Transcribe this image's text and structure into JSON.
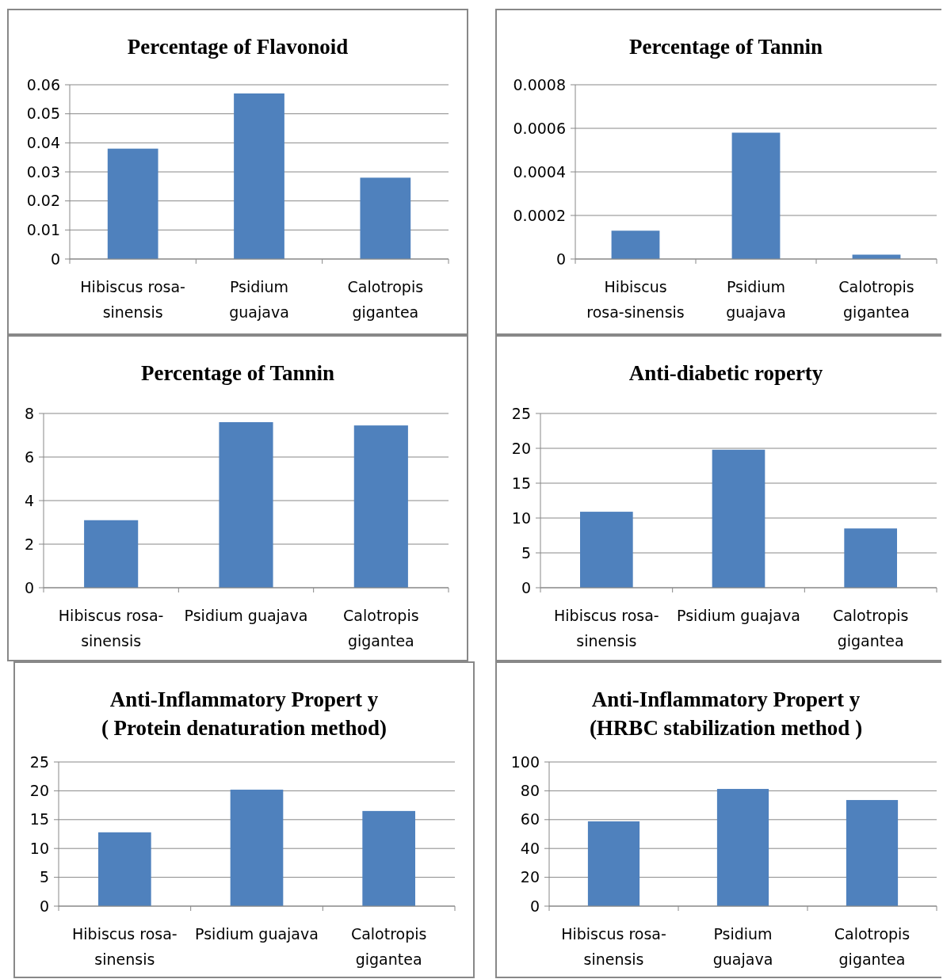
{
  "chart_data": [
    {
      "type": "bar",
      "title": "Percentage of Flavonoid",
      "categories": [
        "Hibiscus rosa-sinensis",
        "Psidium guajava",
        "Calotropis gigantea"
      ],
      "values": [
        0.038,
        0.057,
        0.028
      ],
      "color": "#4f81bd",
      "ylim": [
        0,
        0.06
      ],
      "yticks": [
        0,
        0.01,
        0.02,
        0.03,
        0.04,
        0.05,
        0.06
      ],
      "grid": "y"
    },
    {
      "type": "bar",
      "title": "Percentage of  Tannin",
      "categories": [
        "Hibiscus rosa-sinensis",
        "Psidium guajava",
        "Calotropis gigantea"
      ],
      "values": [
        0.00013,
        0.00058,
        2e-05
      ],
      "color": "#4f81bd",
      "ylim": [
        0,
        0.0008
      ],
      "yticks": [
        0,
        0.0002,
        0.0004,
        0.0006,
        0.0008
      ],
      "grid": "y"
    },
    {
      "type": "bar",
      "title": "Percentage of  Tannin",
      "categories": [
        "Hibiscus rosa-sinensis",
        "Psidium guajava",
        "Calotropis gigantea"
      ],
      "values": [
        3.1,
        7.6,
        7.45
      ],
      "color": "#4f81bd",
      "ylim": [
        0,
        8
      ],
      "yticks": [
        0,
        2,
        4,
        6,
        8
      ],
      "grid": "y"
    },
    {
      "type": "bar",
      "title": "Anti-diabetic roperty",
      "categories": [
        "Hibiscus rosa-sinensis",
        "Psidium guajava",
        "Calotropis gigantea"
      ],
      "values": [
        10.9,
        19.8,
        8.5
      ],
      "color": "#4f81bd",
      "ylim": [
        0,
        25
      ],
      "yticks": [
        0,
        5,
        10,
        15,
        20,
        25
      ],
      "grid": "y"
    },
    {
      "type": "bar",
      "title": "Anti-Inflammatory Propert y\n( Protein denaturation method)",
      "categories": [
        "Hibiscus rosa-sinensis",
        "Psidium guajava",
        "Calotropis gigantea"
      ],
      "values": [
        12.8,
        20.2,
        16.5
      ],
      "color": "#4f81bd",
      "ylim": [
        0,
        25
      ],
      "yticks": [
        0,
        5,
        10,
        15,
        20,
        25
      ],
      "grid": "y"
    },
    {
      "type": "bar",
      "title": "Anti-Inflammatory Propert y\n(HRBC  stabilization method )",
      "categories": [
        "Hibiscus rosa-sinensis",
        "Psidium guajava",
        "Calotropis gigantea"
      ],
      "values": [
        58.8,
        81.3,
        73.6
      ],
      "color": "#4f81bd",
      "ylim": [
        0,
        100
      ],
      "yticks": [
        0,
        20,
        40,
        60,
        80,
        100
      ],
      "grid": "y"
    }
  ]
}
